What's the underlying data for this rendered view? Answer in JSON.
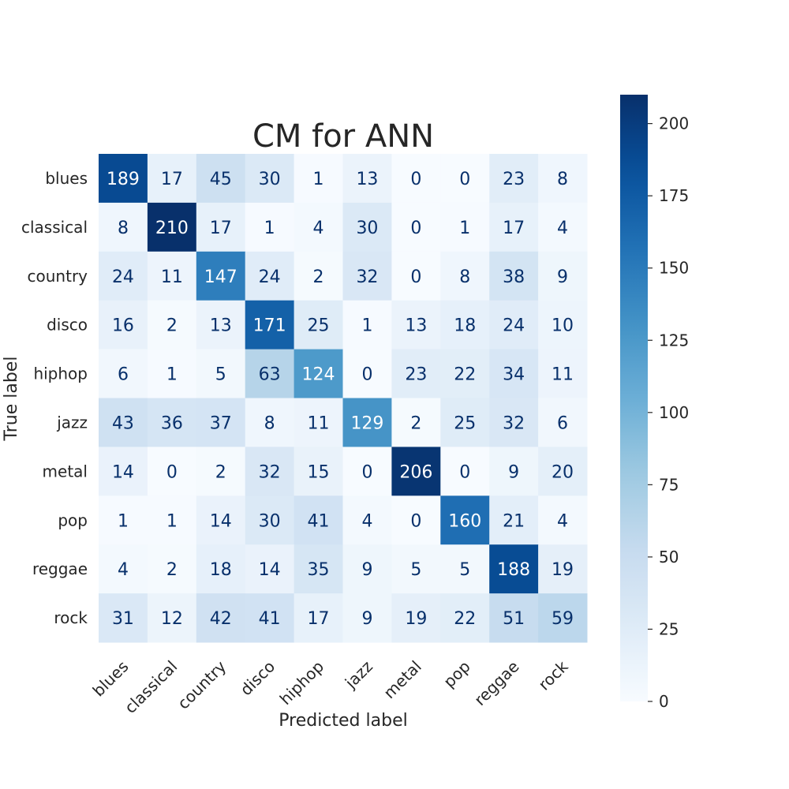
{
  "chart_data": {
    "type": "heatmap",
    "title": "CM for ANN",
    "xlabel": "Predicted label",
    "ylabel": "True label",
    "x_categories": [
      "blues",
      "classical",
      "country",
      "disco",
      "hiphop",
      "jazz",
      "metal",
      "pop",
      "reggae",
      "rock"
    ],
    "y_categories": [
      "blues",
      "classical",
      "country",
      "disco",
      "hiphop",
      "jazz",
      "metal",
      "pop",
      "reggae",
      "rock"
    ],
    "values": [
      [
        189,
        17,
        45,
        30,
        1,
        13,
        0,
        0,
        23,
        8
      ],
      [
        8,
        210,
        17,
        1,
        4,
        30,
        0,
        1,
        17,
        4
      ],
      [
        24,
        11,
        147,
        24,
        2,
        32,
        0,
        8,
        38,
        9
      ],
      [
        16,
        2,
        13,
        171,
        25,
        1,
        13,
        18,
        24,
        10
      ],
      [
        6,
        1,
        5,
        63,
        124,
        0,
        23,
        22,
        34,
        11
      ],
      [
        43,
        36,
        37,
        8,
        11,
        129,
        2,
        25,
        32,
        6
      ],
      [
        14,
        0,
        2,
        32,
        15,
        0,
        206,
        0,
        9,
        20
      ],
      [
        1,
        1,
        14,
        30,
        41,
        4,
        0,
        160,
        21,
        4
      ],
      [
        4,
        2,
        18,
        14,
        35,
        9,
        5,
        5,
        188,
        19
      ],
      [
        31,
        12,
        42,
        41,
        17,
        9,
        19,
        22,
        51,
        59
      ]
    ],
    "colormap": "Blues",
    "colorbar": {
      "range": [
        0,
        210
      ],
      "ticks": [
        0,
        25,
        50,
        75,
        100,
        125,
        150,
        175,
        200
      ]
    },
    "grid": false
  }
}
